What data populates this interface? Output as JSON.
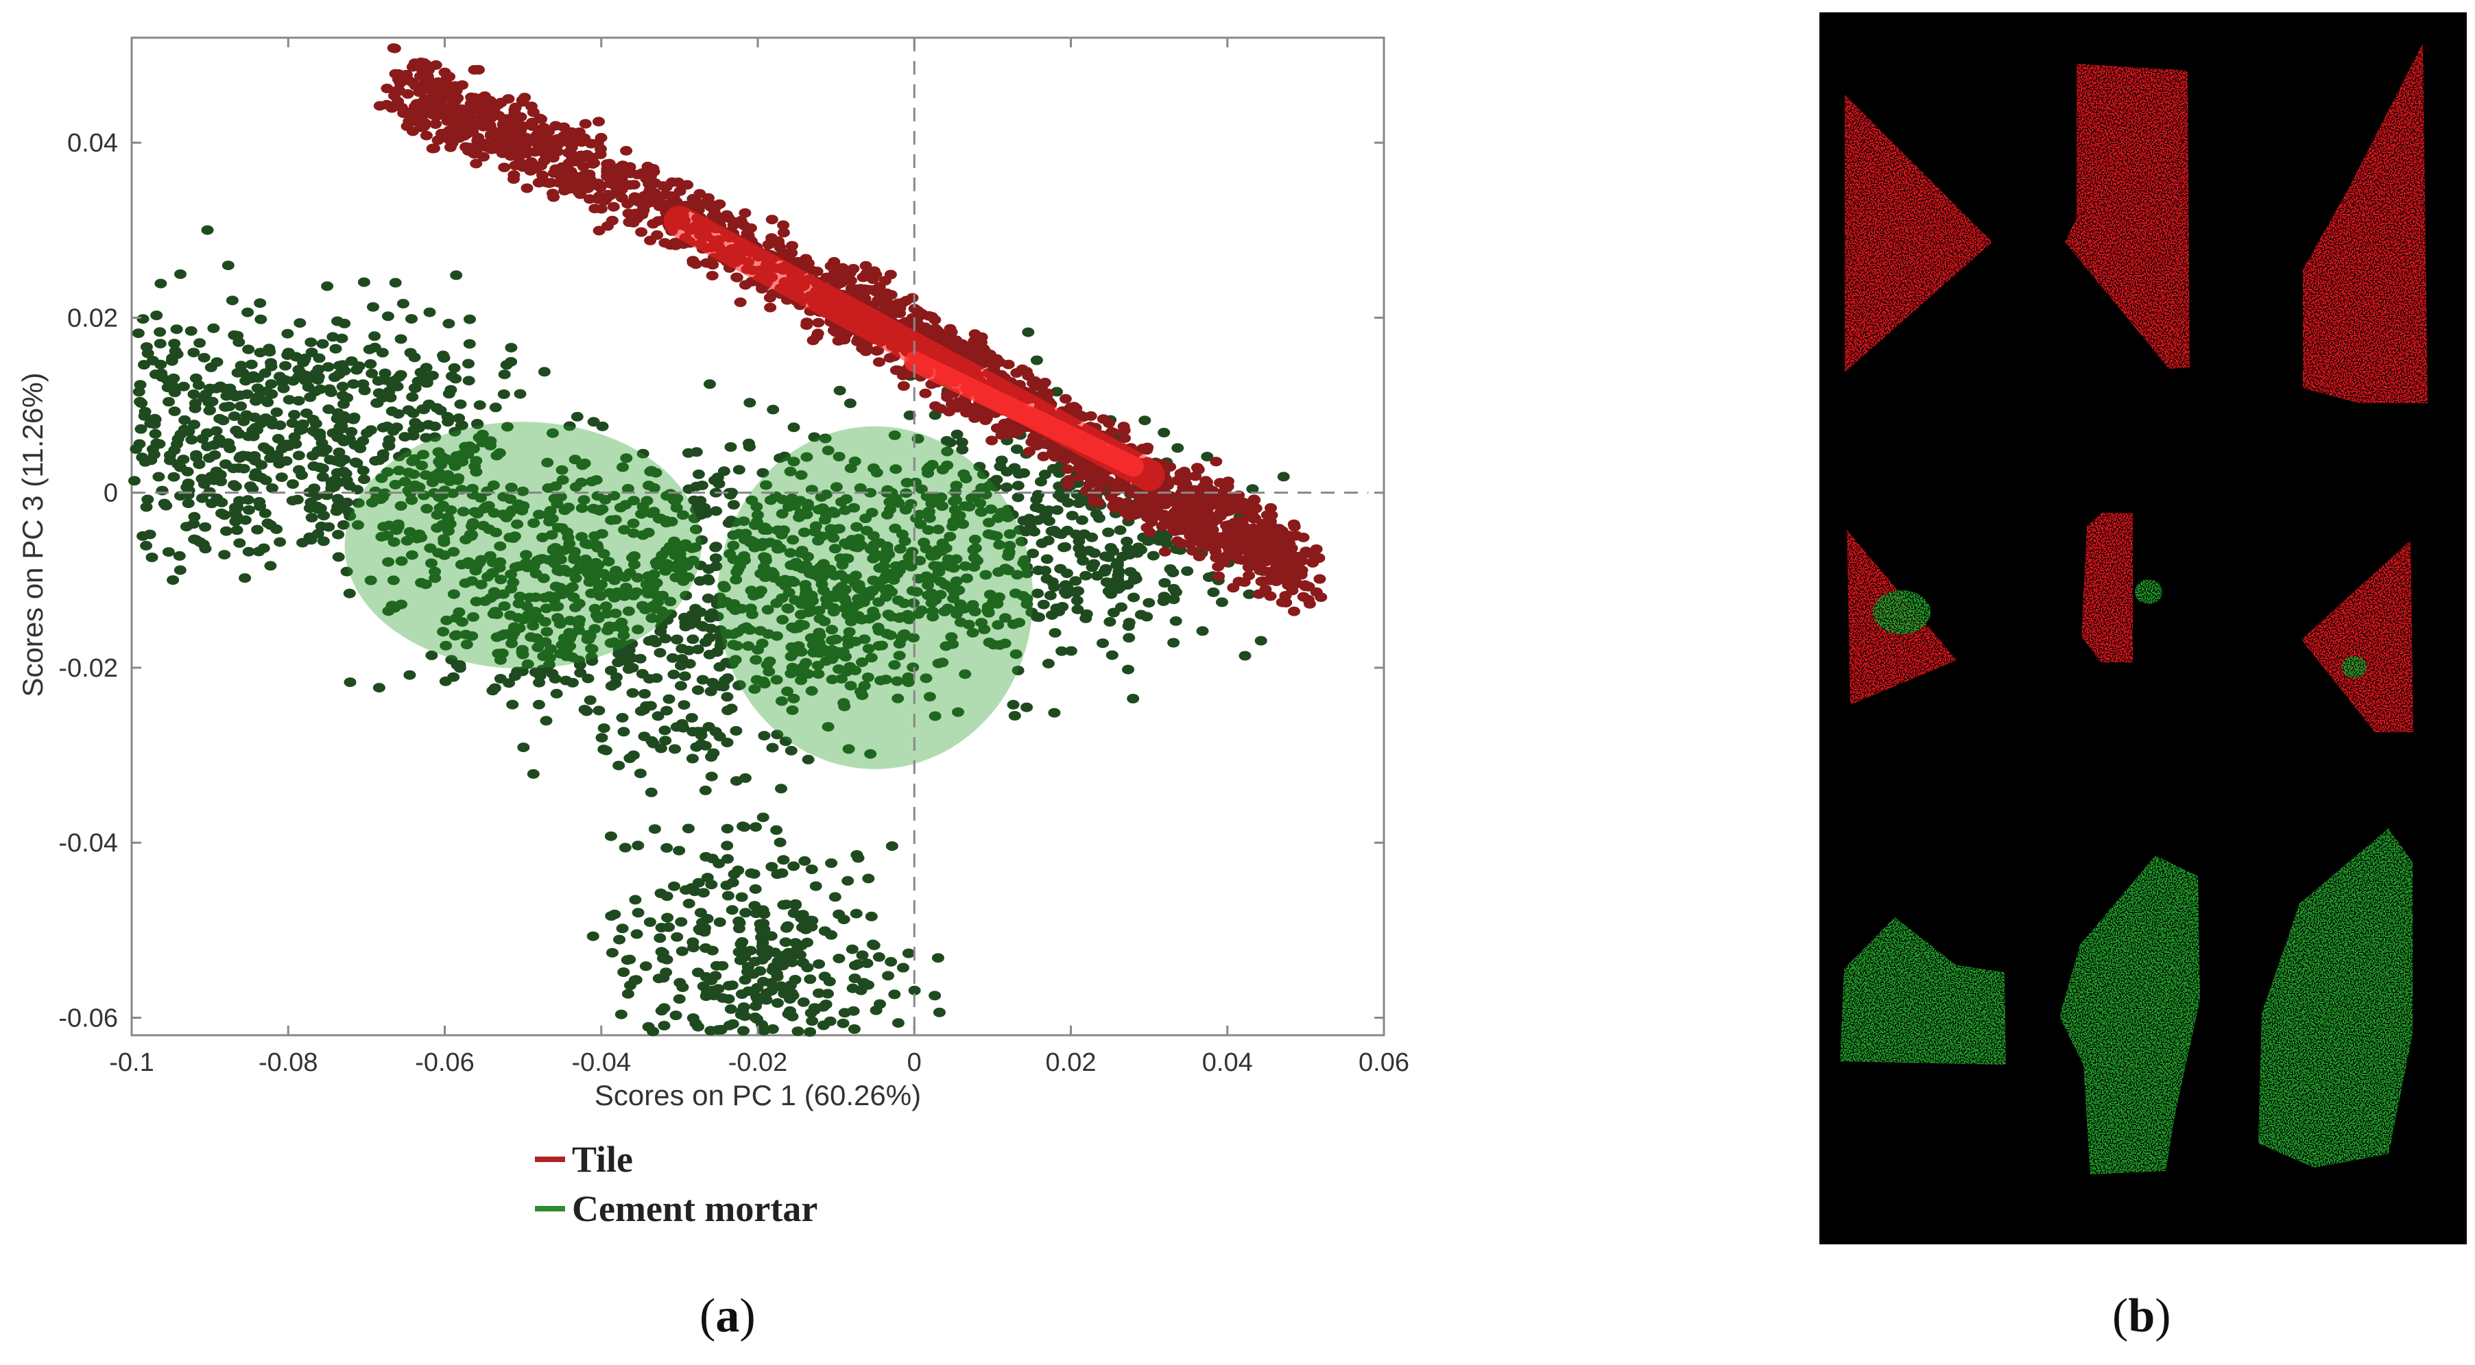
{
  "chart_data": {
    "type": "scatter",
    "xlabel": "Scores on PC 1 (60.26%)",
    "ylabel": "Scores on PC 3 (11.26%)",
    "xlim": [
      -0.1,
      0.06
    ],
    "ylim": [
      -0.062,
      0.052
    ],
    "xticks": [
      -0.1,
      -0.08,
      -0.06,
      -0.04,
      -0.02,
      0,
      0.02,
      0.04,
      0.06
    ],
    "xtick_labels": [
      "-0.1",
      "-0.08",
      "-0.06",
      "-0.04",
      "-0.02",
      "0",
      "0.02",
      "0.04",
      "0.06"
    ],
    "yticks": [
      -0.06,
      -0.04,
      -0.02,
      0,
      0.02,
      0.04
    ],
    "ytick_labels": [
      "-0.06",
      "-0.04",
      "-0.02",
      "0",
      "0.02",
      "0.04"
    ],
    "reference_lines": {
      "x": 0,
      "y": 0
    },
    "legend_placement": "bottom",
    "series": [
      {
        "name": "Tile",
        "color": "#8b1a1a",
        "highlight": "#ff2020",
        "shape": "diagonal band",
        "points": [
          [
            -0.066,
            0.046
          ],
          [
            -0.05,
            0.04
          ],
          [
            -0.03,
            0.032
          ],
          [
            -0.01,
            0.022
          ],
          [
            0,
            0.017
          ],
          [
            0.01,
            0.012
          ],
          [
            0.02,
            0.006
          ],
          [
            0.03,
            0.001
          ],
          [
            0.04,
            -0.004
          ],
          [
            0.05,
            -0.009
          ]
        ]
      },
      {
        "name": "Cement mortar",
        "color": "#1f4a1f",
        "highlight": "#1f9a1f",
        "shape": "broad cloud",
        "points": [
          [
            -0.095,
            0.01
          ],
          [
            -0.085,
            0.004
          ],
          [
            -0.07,
            0.01
          ],
          [
            -0.06,
            0.002
          ],
          [
            -0.05,
            -0.012
          ],
          [
            -0.04,
            -0.008
          ],
          [
            -0.03,
            -0.02
          ],
          [
            -0.02,
            -0.006
          ],
          [
            -0.01,
            -0.012
          ],
          [
            0,
            -0.01
          ],
          [
            0.01,
            -0.002
          ],
          [
            0.025,
            -0.006
          ],
          [
            -0.022,
            -0.05
          ],
          [
            -0.016,
            -0.059
          ]
        ]
      }
    ]
  },
  "legend": [
    {
      "label": "Tile",
      "color": "#b22222"
    },
    {
      "label": "Cement mortar",
      "color": "#2e8b2e"
    }
  ],
  "panel_a_label": "a",
  "panel_b_label": "b",
  "panel_b": {
    "background": "#000000",
    "tile_color": "#e8141a",
    "mortar_color": "#22a52c"
  }
}
